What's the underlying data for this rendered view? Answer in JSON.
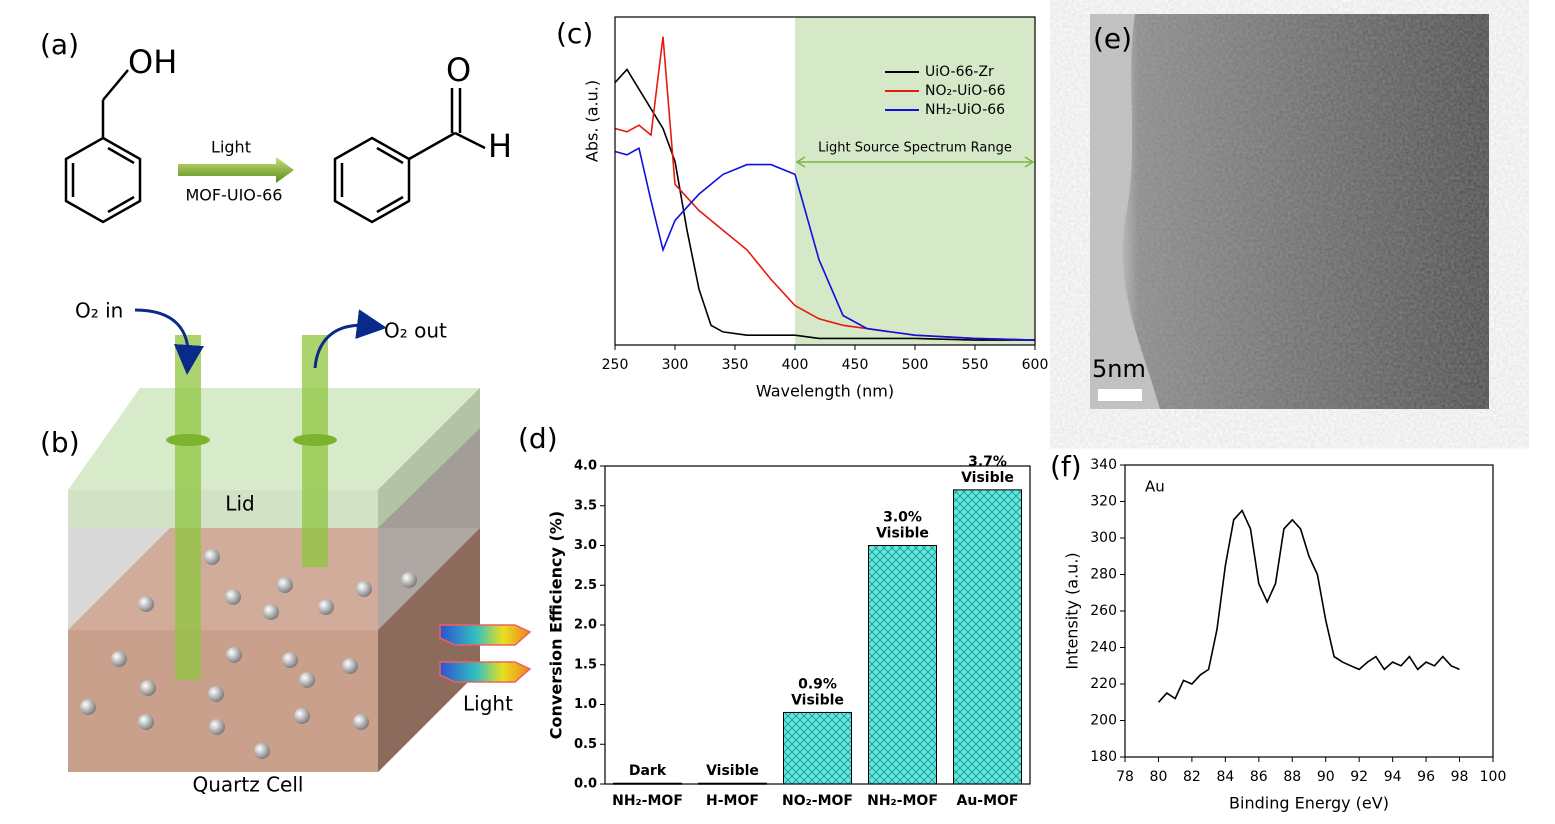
{
  "panel_labels": [
    "(a)",
    "(b)",
    "(c)",
    "(d)",
    "(e)",
    "(f)"
  ],
  "scheme": {
    "reactant_group": "OH",
    "arrow_top": "Light",
    "arrow_bottom": "MOF-UIO-66",
    "product_o": "O",
    "product_h": "H"
  },
  "cell": {
    "o2_in": "O₂ in",
    "o2_out": "O₂ out",
    "lid": "Lid",
    "light": "Light",
    "caption": "Quartz Cell"
  },
  "tem": {
    "scale_bar": "5nm"
  },
  "chart_data": [
    {
      "type": "line",
      "x_label": "Wavelength (nm)",
      "y_label": "Abs. (a.u.)",
      "x": [
        250,
        260,
        270,
        280,
        290,
        300,
        310,
        320,
        330,
        340,
        360,
        380,
        400,
        420,
        440,
        460,
        500,
        550,
        600
      ],
      "series": [
        {
          "name": "UiO-66-Zr",
          "color": "#000000",
          "values": [
            0.8,
            0.84,
            0.78,
            0.72,
            0.66,
            0.56,
            0.35,
            0.17,
            0.06,
            0.04,
            0.03,
            0.03,
            0.03,
            0.02,
            0.02,
            0.02,
            0.02,
            0.015,
            0.015
          ]
        },
        {
          "name": "NO₂-UiO-66",
          "color": "#e8190e",
          "values": [
            0.66,
            0.65,
            0.67,
            0.64,
            0.94,
            0.49,
            0.45,
            0.41,
            0.38,
            0.35,
            0.29,
            0.2,
            0.12,
            0.08,
            0.06,
            0.05,
            0.03,
            0.02,
            0.015
          ]
        },
        {
          "name": "NH₂-UiO-66",
          "color": "#1010e0",
          "values": [
            0.59,
            0.58,
            0.6,
            0.44,
            0.29,
            0.38,
            0.42,
            0.46,
            0.49,
            0.52,
            0.55,
            0.55,
            0.52,
            0.26,
            0.09,
            0.05,
            0.03,
            0.02,
            0.015
          ]
        }
      ],
      "xlim": [
        250,
        600
      ],
      "xticks": [
        250,
        300,
        350,
        400,
        450,
        500,
        550,
        600
      ],
      "ylim": [
        0,
        1
      ],
      "legend": "upper right",
      "shaded_region": {
        "label": "Light Source Spectrum Range",
        "xrange": [
          400,
          600
        ],
        "color": "#d5e9c9",
        "arrow_color": "#7ab648"
      }
    },
    {
      "type": "bar",
      "y_label": "Conversion Efficiency (%)",
      "categories": [
        "NH₂-MOF",
        "H-MOF",
        "NO₂-MOF",
        "NH₂-MOF",
        "Au-MOF"
      ],
      "values": [
        0.01,
        0.01,
        0.9,
        3.0,
        3.7
      ],
      "value_labels": [
        null,
        null,
        "0.9%",
        "3.0%",
        "3.7%"
      ],
      "conditions": [
        "Dark",
        "Visible",
        "Visible",
        "Visible",
        "Visible"
      ],
      "color": "#5ee8e0",
      "ylim": [
        0,
        4
      ],
      "yticks": [
        {
          "value": 0,
          "label": "0.0"
        },
        {
          "value": 0.5,
          "label": "0.5"
        },
        {
          "value": 1,
          "label": "1.0"
        },
        {
          "value": 1.5,
          "label": "1.5"
        },
        {
          "value": 2,
          "label": "2.0"
        },
        {
          "value": 2.5,
          "label": "2.5"
        },
        {
          "value": 3,
          "label": "3.0"
        },
        {
          "value": 3.5,
          "label": "3.5"
        },
        {
          "value": 4,
          "label": "4.0"
        }
      ]
    },
    {
      "type": "line",
      "x_label": "Binding Energy (eV)",
      "y_label": "Intensity (a.u.)",
      "annotation": "Au",
      "x": [
        80,
        80.5,
        81,
        81.5,
        82,
        82.5,
        83,
        83.5,
        84,
        84.5,
        85,
        85.5,
        86,
        86.5,
        87,
        87.5,
        88,
        88.5,
        89,
        89.5,
        90,
        90.5,
        91,
        91.5,
        92,
        92.5,
        93,
        93.5,
        94,
        94.5,
        95,
        95.5,
        96,
        96.5,
        97,
        97.5,
        98
      ],
      "series": [
        {
          "name": null,
          "color": "#000000",
          "values": [
            210,
            215,
            212,
            222,
            220,
            225,
            228,
            250,
            285,
            310,
            315,
            305,
            275,
            265,
            275,
            305,
            310,
            305,
            290,
            280,
            255,
            235,
            232,
            230,
            228,
            232,
            235,
            228,
            232,
            230,
            235,
            228,
            232,
            230,
            235,
            230,
            228
          ]
        }
      ],
      "xlim": [
        78,
        100
      ],
      "xticks": [
        78,
        80,
        82,
        84,
        86,
        88,
        90,
        92,
        94,
        96,
        98,
        100
      ],
      "ylim": [
        180,
        340
      ],
      "yticks": [
        180,
        200,
        220,
        240,
        260,
        280,
        300,
        320,
        340
      ]
    }
  ]
}
